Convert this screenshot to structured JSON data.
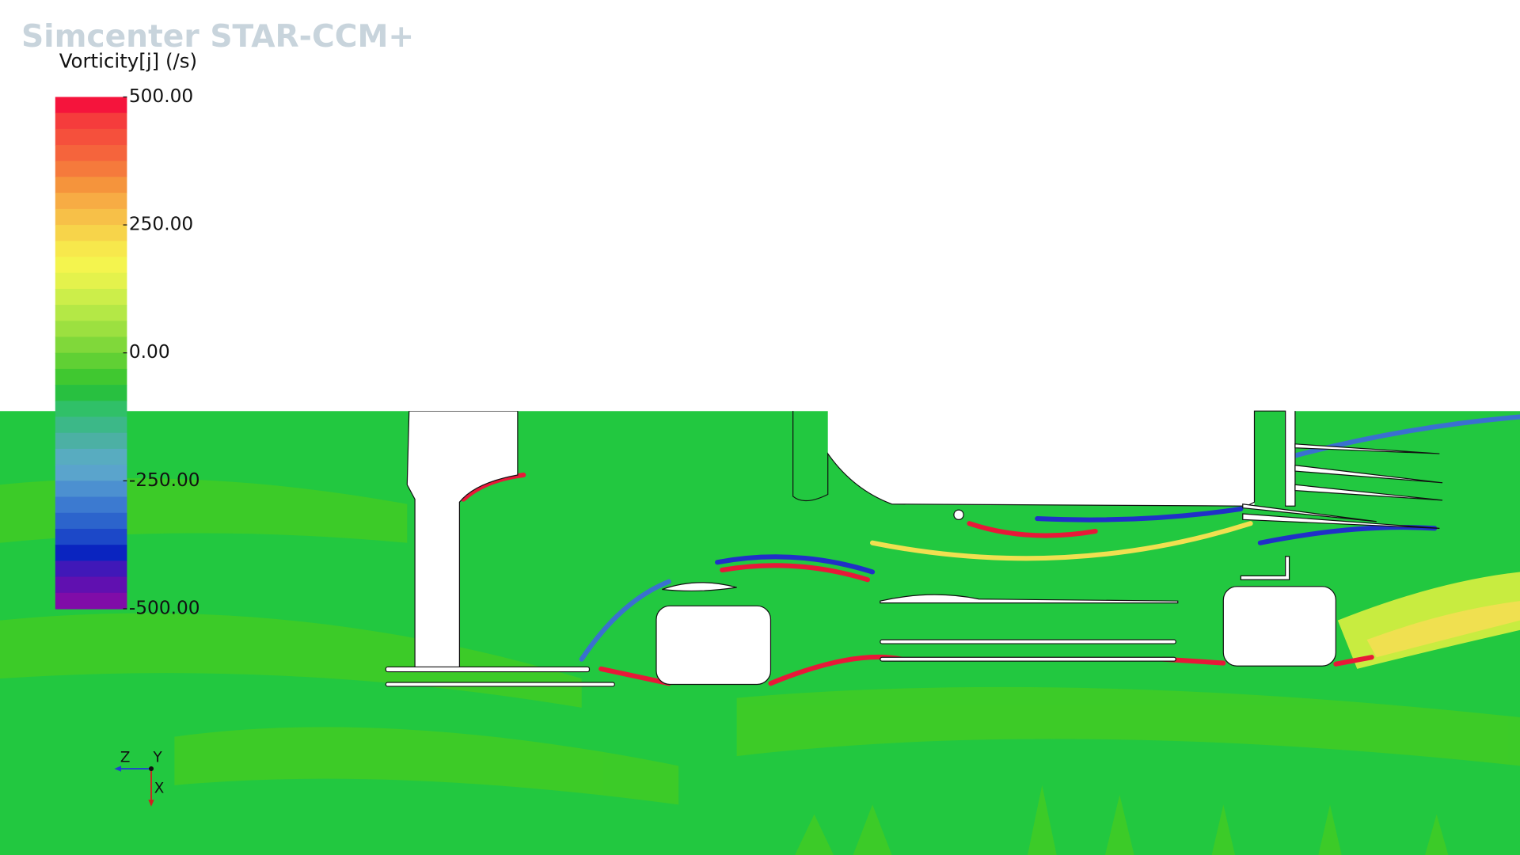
{
  "header": {
    "title": "Simcenter STAR-CCM+"
  },
  "colorbar": {
    "title": "Vorticity[j] (/s)",
    "range": [
      -500,
      500
    ],
    "ticks": [
      {
        "value": 500,
        "label": "500.00"
      },
      {
        "value": 250,
        "label": "250.00"
      },
      {
        "value": 0,
        "label": "0.00"
      },
      {
        "value": -250,
        "label": "-250.00"
      },
      {
        "value": -500,
        "label": "-500.00"
      }
    ],
    "colors": [
      "#f5143c",
      "#f53c3c",
      "#f5503c",
      "#f5643c",
      "#f57a3c",
      "#f5943c",
      "#f7ac44",
      "#f7c048",
      "#f7d44a",
      "#f7e84c",
      "#f4f44e",
      "#e4f24c",
      "#ccee4a",
      "#b4e846",
      "#9ce040",
      "#80d83a",
      "#60d034",
      "#40c830",
      "#28c040",
      "#30c068",
      "#3cb888",
      "#4cb0a4",
      "#58acc0",
      "#5aa4cc",
      "#4c90d0",
      "#3c7ad0",
      "#2c64cc",
      "#1c48c8",
      "#0a24c0",
      "#4018b8",
      "#6010b0",
      "#800ca8"
    ]
  },
  "axes_triad": {
    "labels": [
      "Z",
      "Y",
      "X"
    ]
  }
}
